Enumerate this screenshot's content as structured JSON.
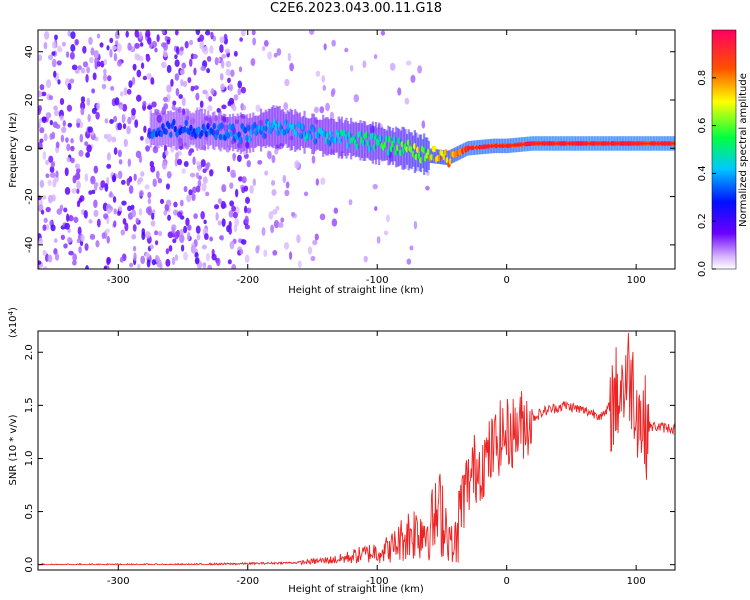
{
  "title": "C2E6.2023.043.00.11.G18",
  "colors": {
    "snr_line": "#ee2222",
    "ridge": "#ff2020"
  },
  "chart_data": [
    {
      "type": "heatmap",
      "xlabel": "Height of straight line (km)",
      "ylabel": "Frequency (Hz)",
      "xlim": [
        -362,
        130
      ],
      "ylim": [
        -50,
        49
      ],
      "x_ticks": [
        -300,
        -200,
        -100,
        0,
        100
      ],
      "y_ticks": [
        -40,
        -20,
        0,
        20,
        40
      ],
      "x_tick_labels": [
        "-300",
        "-200",
        "-100",
        "0",
        "100"
      ],
      "y_tick_labels": [
        "-40",
        "-20",
        "0",
        "20",
        "40"
      ],
      "colorbar": {
        "label": "Normalized spectral amplitude",
        "range": [
          0.0,
          1.0
        ],
        "ticks": [
          0.0,
          0.2,
          0.4,
          0.6,
          0.8
        ],
        "tick_labels": [
          "0.0",
          "0.2",
          "0.4",
          "0.6",
          "0.8"
        ],
        "colormap": "rainbow"
      },
      "ridge": {
        "x": [
          -270,
          -240,
          -200,
          -180,
          -160,
          -140,
          -120,
          -100,
          -80,
          -60,
          -45,
          -30,
          -10,
          0,
          20,
          60,
          100,
          130
        ],
        "y": [
          8,
          8,
          6,
          9,
          7,
          5,
          4,
          2,
          0,
          -3,
          -4,
          0,
          1,
          1,
          2,
          2,
          2,
          2
        ],
        "amplitude": [
          0.35,
          0.35,
          0.4,
          0.45,
          0.45,
          0.45,
          0.5,
          0.55,
          0.6,
          0.75,
          0.85,
          0.95,
          0.95,
          0.95,
          1.0,
          1.0,
          1.0,
          1.0
        ]
      }
    },
    {
      "type": "line",
      "xlabel": "Height of straight line (km)",
      "ylabel": "SNR (10 * v/v)",
      "yscale_label": "(x10",
      "yscale_exp": "4",
      "yscale_close": ")",
      "xlim": [
        -362,
        130
      ],
      "ylim": [
        -0.05,
        2.2
      ],
      "x_ticks": [
        -300,
        -200,
        -100,
        0,
        100
      ],
      "y_ticks": [
        0.0,
        0.5,
        1.0,
        1.5,
        2.0
      ],
      "x_tick_labels": [
        "-300",
        "-200",
        "-100",
        "0",
        "100"
      ],
      "y_tick_labels": [
        "0.0",
        "0.5",
        "1.0",
        "1.5",
        "2.0"
      ],
      "series": [
        {
          "x": [
            -362,
            -300,
            -250,
            -200,
            -160,
            -130,
            -110,
            -90,
            -75,
            -60,
            -50,
            -40,
            -35,
            -25,
            -15,
            -5,
            5,
            15,
            30,
            45,
            60,
            75,
            85,
            95,
            105,
            115,
            130
          ],
          "y": [
            0.0,
            0.0,
            0.0,
            0.01,
            0.02,
            0.05,
            0.1,
            0.15,
            0.3,
            0.35,
            0.5,
            0.1,
            0.6,
            0.9,
            1.0,
            1.2,
            1.25,
            1.35,
            1.45,
            1.5,
            1.45,
            1.4,
            1.6,
            1.8,
            1.3,
            1.3,
            1.28
          ]
        }
      ]
    }
  ]
}
